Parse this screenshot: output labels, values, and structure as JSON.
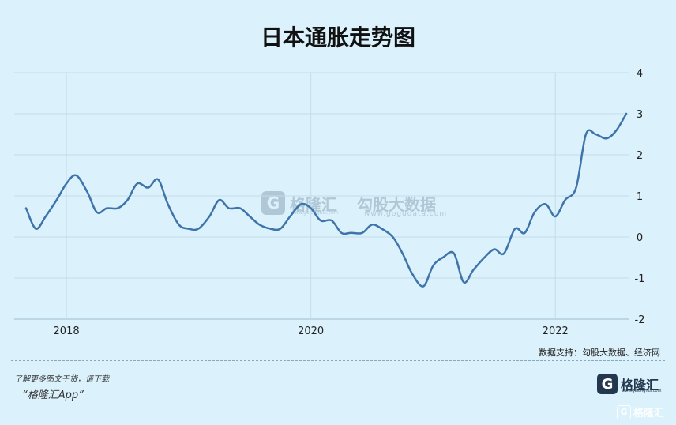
{
  "title": "日本通胀走势图",
  "source": "数据支持：勾股大数据、经济网",
  "footer": {
    "line1": "了解更多图文干货，请下载",
    "line2": "“格隆汇App”"
  },
  "brand": {
    "icon": "G",
    "name": "格隆汇",
    "url": "www.gelonghui.com"
  },
  "watermark": {
    "icon": "G",
    "name": "格隆汇",
    "url": "www.gelonghui.com",
    "name2": "勾股大数据",
    "url2": "www.gogudata.com"
  },
  "corner": {
    "icon": "G",
    "name": "格隆汇"
  },
  "colors": {
    "background": "#dbf1fb",
    "line": "#3f74ab",
    "grid": "#c4dcea"
  },
  "chart_data": {
    "type": "line",
    "title": "日本通胀走势图",
    "xlabel": "",
    "ylabel": "",
    "x_ticks": [
      "2018",
      "2020",
      "2022"
    ],
    "y_ticks": [
      4,
      3,
      2,
      1,
      0,
      -1,
      -2
    ],
    "ylim": [
      -2,
      4
    ],
    "xlim": [
      2017.6,
      2023.5
    ],
    "grid": true,
    "y_axis_position": "right",
    "series": [
      {
        "name": "",
        "points": [
          [
            2017.67,
            0.7
          ],
          [
            2017.75,
            0.2
          ],
          [
            2017.83,
            0.5
          ],
          [
            2017.92,
            0.9
          ],
          [
            2018.0,
            1.3
          ],
          [
            2018.08,
            1.5
          ],
          [
            2018.17,
            1.1
          ],
          [
            2018.25,
            0.6
          ],
          [
            2018.33,
            0.7
          ],
          [
            2018.42,
            0.7
          ],
          [
            2018.5,
            0.9
          ],
          [
            2018.58,
            1.3
          ],
          [
            2018.67,
            1.2
          ],
          [
            2018.75,
            1.4
          ],
          [
            2018.83,
            0.8
          ],
          [
            2018.92,
            0.3
          ],
          [
            2019.0,
            0.2
          ],
          [
            2019.08,
            0.2
          ],
          [
            2019.17,
            0.5
          ],
          [
            2019.25,
            0.9
          ],
          [
            2019.33,
            0.7
          ],
          [
            2019.42,
            0.7
          ],
          [
            2019.5,
            0.5
          ],
          [
            2019.58,
            0.3
          ],
          [
            2019.67,
            0.2
          ],
          [
            2019.75,
            0.2
          ],
          [
            2019.83,
            0.5
          ],
          [
            2019.92,
            0.8
          ],
          [
            2020.0,
            0.7
          ],
          [
            2020.08,
            0.4
          ],
          [
            2020.17,
            0.4
          ],
          [
            2020.25,
            0.1
          ],
          [
            2020.33,
            0.1
          ],
          [
            2020.42,
            0.1
          ],
          [
            2020.5,
            0.3
          ],
          [
            2020.58,
            0.2
          ],
          [
            2020.67,
            0.0
          ],
          [
            2020.75,
            -0.4
          ],
          [
            2020.83,
            -0.9
          ],
          [
            2020.92,
            -1.2
          ],
          [
            2021.0,
            -0.7
          ],
          [
            2021.08,
            -0.5
          ],
          [
            2021.17,
            -0.4
          ],
          [
            2021.25,
            -1.1
          ],
          [
            2021.33,
            -0.8
          ],
          [
            2021.42,
            -0.5
          ],
          [
            2021.5,
            -0.3
          ],
          [
            2021.58,
            -0.4
          ],
          [
            2021.67,
            0.2
          ],
          [
            2021.75,
            0.1
          ],
          [
            2021.83,
            0.6
          ],
          [
            2021.92,
            0.8
          ],
          [
            2022.0,
            0.5
          ],
          [
            2022.08,
            0.9
          ],
          [
            2022.17,
            1.2
          ],
          [
            2022.25,
            2.5
          ],
          [
            2022.33,
            2.5
          ],
          [
            2022.42,
            2.4
          ],
          [
            2022.5,
            2.6
          ],
          [
            2022.58,
            3.0
          ]
        ]
      }
    ]
  }
}
